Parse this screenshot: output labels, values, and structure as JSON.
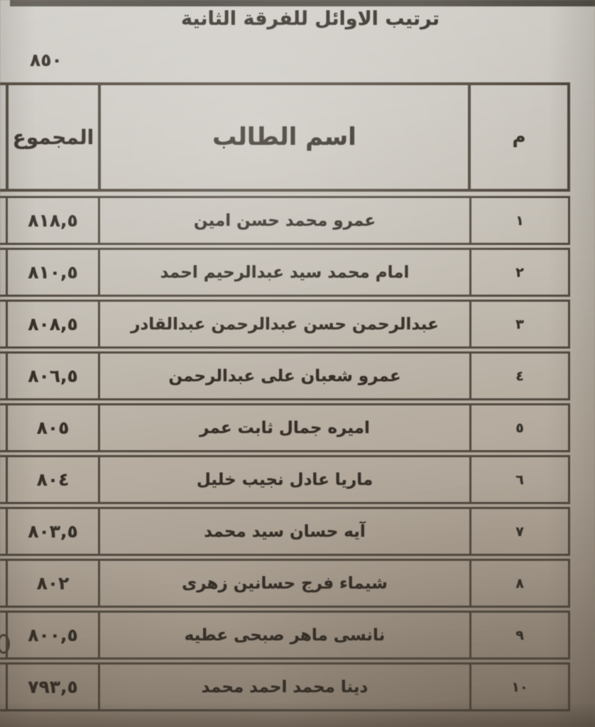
{
  "page": {
    "title": "ترتيب الاوائل للفرقة الثانية",
    "max_total": "٨٥٠"
  },
  "table": {
    "headers": {
      "rank": "م",
      "name": "اسم الطالب",
      "total": "المجموع"
    },
    "rows": [
      {
        "rank": "١",
        "name": "عمرو محمد حسن امين",
        "total": "٨١٨,٥"
      },
      {
        "rank": "٢",
        "name": "امام محمد سيد عبدالرحيم احمد",
        "total": "٨١٠,٥"
      },
      {
        "rank": "٣",
        "name": "عبدالرحمن حسن عبدالرحمن عبدالقادر",
        "total": "٨٠٨,٥"
      },
      {
        "rank": "٤",
        "name": "عمرو شعبان على عبدالرحمن",
        "total": "٨٠٦,٥"
      },
      {
        "rank": "٥",
        "name": "اميره جمال ثابت عمر",
        "total": "٨٠٥"
      },
      {
        "rank": "٦",
        "name": "ماريا عادل نجيب خليل",
        "total": "٨٠٤"
      },
      {
        "rank": "٧",
        "name": "آيه حسان سيد محمد",
        "total": "٨٠٣,٥"
      },
      {
        "rank": "٨",
        "name": "شيماء فرج حسانين زهرى",
        "total": "٨٠٢"
      },
      {
        "rank": "٩",
        "name": "نانسى ماهر صبحى عطيه",
        "total": "٨٠٠,٥"
      },
      {
        "rank": "١٠",
        "name": "دينا محمد احمد محمد",
        "total": "٧٩٣,٥"
      }
    ]
  },
  "colors": {
    "paper_light": "#d4d1cc",
    "paper_dark": "#8f8476",
    "border": "#51493f",
    "ink": "#352f28",
    "top_edge_bar": "#55514b"
  }
}
